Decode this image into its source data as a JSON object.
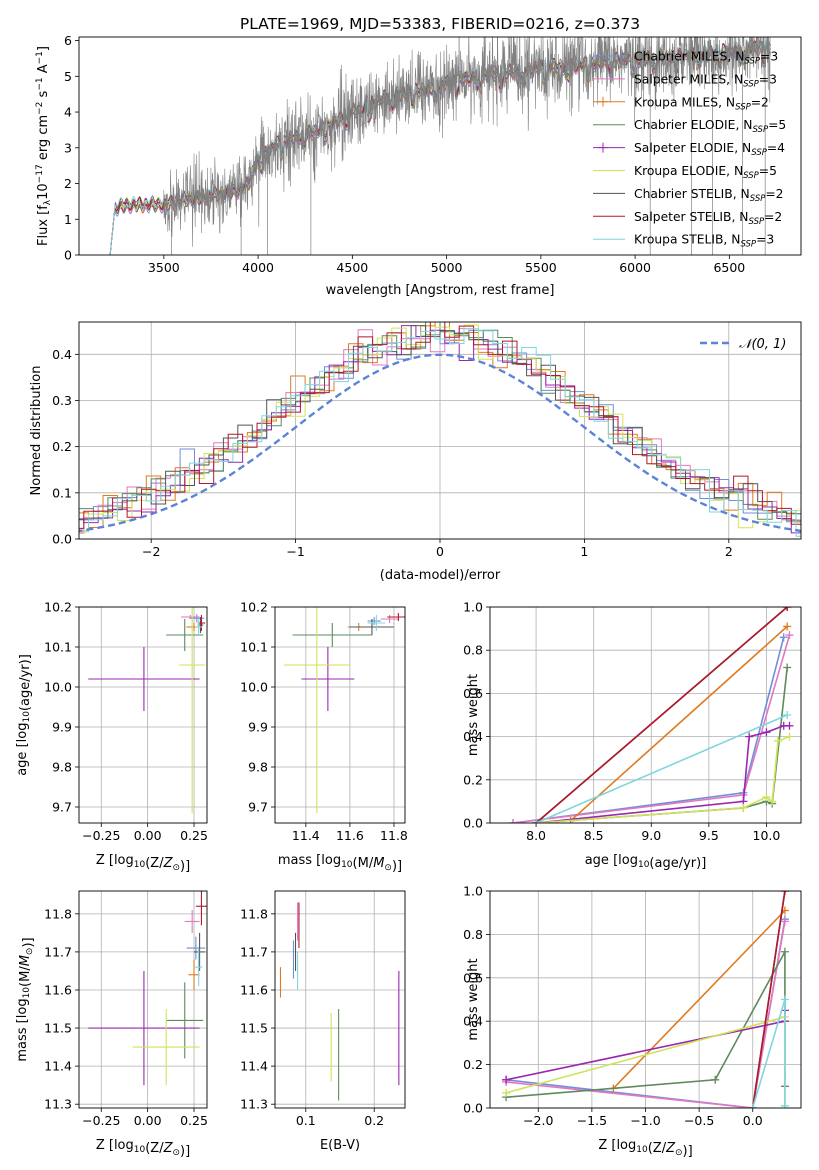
{
  "figure_title": "PLATE=1969, MJD=53383, FIBERID=0216, z=0.373",
  "colors": {
    "Chabrier MILES": "#6f8fd8",
    "Salpeter MILES": "#e377c2",
    "Kroupa MILES": "#e07a1f",
    "Chabrier ELODIE": "#5e8a5e",
    "Salpeter ELODIE": "#9b27b0",
    "Kroupa ELODIE": "#cfe35a",
    "Chabrier STELIB": "#555555",
    "Salpeter STELIB": "#b2182b",
    "Kroupa STELIB": "#7fd6e0",
    "data": "#808080",
    "gaussian": "#5b84d6",
    "grid": "#b0b0b0"
  },
  "chart_data": [
    {
      "id": "spectrum",
      "type": "line",
      "title": "PLATE=1969, MJD=53383, FIBERID=0216, z=0.373",
      "xlabel": "wavelength [Angstrom, rest frame]",
      "ylabel": "Flux [f_λ 10^-17 erg cm^-2 s^-1 A^-1]",
      "xlim": [
        3050,
        6880
      ],
      "ylim": [
        0,
        6.1
      ],
      "xticks": [
        3500,
        4000,
        4500,
        5000,
        5500,
        6000,
        6500
      ],
      "yticks": [
        0,
        1,
        2,
        3,
        4,
        5,
        6
      ],
      "grid": false,
      "legend_position": "top-right",
      "legend": [
        {
          "label": "Chabrier MILES, N",
          "sub": "SSP",
          "tail": "=3"
        },
        {
          "label": "Salpeter MILES, N",
          "sub": "SSP",
          "tail": "=3"
        },
        {
          "label": "Kroupa MILES, N",
          "sub": "SSP",
          "tail": "=2"
        },
        {
          "label": "Chabrier ELODIE, N",
          "sub": "SSP",
          "tail": "=5"
        },
        {
          "label": "Salpeter ELODIE, N",
          "sub": "SSP",
          "tail": "=4"
        },
        {
          "label": "Kroupa ELODIE, N",
          "sub": "SSP",
          "tail": "=5"
        },
        {
          "label": "Chabrier STELIB, N",
          "sub": "SSP",
          "tail": "=2"
        },
        {
          "label": "Salpeter STELIB, N",
          "sub": "SSP",
          "tail": "=2"
        },
        {
          "label": "Kroupa STELIB, N",
          "sub": "SSP",
          "tail": "=3"
        }
      ],
      "continuum": {
        "x": [
          3215,
          3240,
          3300,
          3400,
          3490,
          3500,
          3600,
          3700,
          3800,
          3850,
          3900,
          3950,
          4000,
          4100,
          4200,
          4300,
          4400,
          4500,
          4700,
          4900,
          5100,
          5300,
          5500,
          5700,
          5900,
          6100,
          6300,
          6500,
          6700
        ],
        "y": [
          0,
          1.3,
          1.4,
          1.4,
          1.42,
          1.4,
          1.55,
          1.6,
          1.7,
          1.75,
          1.8,
          2.0,
          2.7,
          3.1,
          3.3,
          3.45,
          3.7,
          4.0,
          4.45,
          4.65,
          4.95,
          5.1,
          5.25,
          5.3,
          5.45,
          5.5,
          5.6,
          5.7,
          5.8
        ]
      },
      "data_spike_lows_x": [
        3540,
        3910,
        4050,
        4280,
        6080,
        6300,
        6410,
        6570,
        6690
      ],
      "data_range_x": [
        3500,
        6720
      ]
    },
    {
      "id": "residuals",
      "type": "step",
      "xlabel": "(data-model)/error",
      "ylabel": "Normed distribution",
      "xlim": [
        -2.5,
        2.5
      ],
      "ylim": [
        0,
        0.47
      ],
      "xticks": [
        -2,
        -1,
        0,
        1,
        2
      ],
      "yticks": [
        0.0,
        0.1,
        0.2,
        0.3,
        0.4
      ],
      "grid": true,
      "bin_width": 0.1,
      "legend_label": "𝒩(0, 1)",
      "legend_position": "top-right"
    },
    {
      "id": "z-age",
      "type": "scatter",
      "xlabel": "Z [log10(Z/Z⊙)]",
      "ylabel": "age  [log10(age/yr)]",
      "xlim": [
        -0.37,
        0.32
      ],
      "ylim": [
        9.66,
        10.2
      ],
      "xticks": [
        -0.25,
        0.0,
        0.25
      ],
      "xticklabels": [
        "−0.25",
        "0.00",
        "0.25"
      ],
      "yticks": [
        9.7,
        9.8,
        9.9,
        10.0,
        10.1,
        10.2
      ],
      "grid": true,
      "points": [
        {
          "model": "Chabrier MILES",
          "x": 0.265,
          "xerr": 0.04,
          "y": 10.172,
          "yerr": 0.01
        },
        {
          "model": "Salpeter MILES",
          "x": 0.23,
          "xerr": 0.05,
          "y": 10.175,
          "yerr": 0.005
        },
        {
          "model": "Kroupa MILES",
          "x": 0.25,
          "xerr": 0.04,
          "y": 10.15,
          "yerr": 0.01
        },
        {
          "model": "Chabrier ELODIE",
          "x": 0.2,
          "xerr": 0.1,
          "y": 10.13,
          "yerr": 0.04
        },
        {
          "model": "Salpeter ELODIE",
          "x": -0.02,
          "xerr": 0.3,
          "y": 10.02,
          "yerr": 0.08
        },
        {
          "model": "Kroupa ELODIE",
          "x": 0.24,
          "xerr": 0.07,
          "y": 10.055,
          "yerr": 0.37
        },
        {
          "model": "Chabrier STELIB",
          "x": 0.285,
          "xerr": 0.015,
          "y": 10.155,
          "yerr": 0.02
        },
        {
          "model": "Salpeter STELIB",
          "x": 0.29,
          "xerr": 0.02,
          "y": 10.16,
          "yerr": 0.02
        },
        {
          "model": "Kroupa STELIB",
          "x": 0.275,
          "xerr": 0.02,
          "y": 10.15,
          "yerr": 0.02
        }
      ]
    },
    {
      "id": "mass-age",
      "type": "scatter",
      "xlabel": "mass [log10(M/M⊙)]",
      "ylabel": "",
      "xlim": [
        11.26,
        11.85
      ],
      "ylim": [
        9.66,
        10.2
      ],
      "xticks": [
        11.4,
        11.6,
        11.8
      ],
      "yticks": [
        9.7,
        9.8,
        9.9,
        10.0,
        10.1,
        10.2
      ],
      "grid": true,
      "points": [
        {
          "model": "Chabrier MILES",
          "x": 11.71,
          "xerr": 0.03,
          "y": 10.165,
          "yerr": 0.01
        },
        {
          "model": "Salpeter MILES",
          "x": 11.78,
          "xerr": 0.04,
          "y": 10.17,
          "yerr": 0.01
        },
        {
          "model": "Kroupa MILES",
          "x": 11.64,
          "xerr": 0.05,
          "y": 10.15,
          "yerr": 0.01
        },
        {
          "model": "Chabrier ELODIE",
          "x": 11.52,
          "xerr": 0.18,
          "y": 10.13,
          "yerr": 0.03
        },
        {
          "model": "Salpeter ELODIE",
          "x": 11.5,
          "xerr": 0.12,
          "y": 10.02,
          "yerr": 0.08
        },
        {
          "model": "Kroupa ELODIE",
          "x": 11.45,
          "xerr": 0.15,
          "y": 10.055,
          "yerr": 0.37
        },
        {
          "model": "Chabrier STELIB",
          "x": 11.7,
          "xerr": 0.1,
          "y": 10.15,
          "yerr": 0.02
        },
        {
          "model": "Salpeter STELIB",
          "x": 11.82,
          "xerr": 0.05,
          "y": 10.175,
          "yerr": 0.01
        },
        {
          "model": "Kroupa STELIB",
          "x": 11.72,
          "xerr": 0.04,
          "y": 10.16,
          "yerr": 0.02
        }
      ]
    },
    {
      "id": "age-weight",
      "type": "line",
      "xlabel": "age  [log10(age/yr)]",
      "ylabel": "mass weight",
      "xlim": [
        7.6,
        10.3
      ],
      "ylim": [
        0,
        1.0
      ],
      "xticks": [
        8.0,
        8.5,
        9.0,
        9.5,
        10.0
      ],
      "yticks": [
        0.0,
        0.2,
        0.4,
        0.6,
        0.8,
        1.0
      ],
      "grid": true,
      "series": [
        {
          "model": "Chabrier MILES",
          "x": [
            7.8,
            9.8,
            10.15
          ],
          "y": [
            0.0,
            0.14,
            0.86
          ]
        },
        {
          "model": "Salpeter MILES",
          "x": [
            7.8,
            9.8,
            10.2
          ],
          "y": [
            0.0,
            0.13,
            0.87
          ]
        },
        {
          "model": "Kroupa MILES",
          "x": [
            8.3,
            10.18
          ],
          "y": [
            0.01,
            0.91
          ]
        },
        {
          "model": "Chabrier ELODIE",
          "x": [
            8.0,
            9.8,
            10.0,
            10.05,
            10.18
          ],
          "y": [
            0.0,
            0.07,
            0.1,
            0.09,
            0.72
          ]
        },
        {
          "model": "Salpeter ELODIE",
          "x": [
            8.0,
            9.8,
            9.85,
            10.0,
            10.15,
            10.2
          ],
          "y": [
            0.0,
            0.1,
            0.4,
            0.42,
            0.45,
            0.45
          ]
        },
        {
          "model": "Kroupa ELODIE",
          "x": [
            8.0,
            9.8,
            10.0,
            10.05,
            10.1,
            10.2
          ],
          "y": [
            0.0,
            0.07,
            0.12,
            0.1,
            0.38,
            0.4
          ]
        },
        {
          "model": "Chabrier STELIB",
          "x": [
            8.0,
            10.18
          ],
          "y": [
            0.0,
            1.0
          ]
        },
        {
          "model": "Salpeter STELIB",
          "x": [
            8.0,
            10.18
          ],
          "y": [
            0.0,
            1.0
          ]
        },
        {
          "model": "Kroupa STELIB",
          "x": [
            8.0,
            10.18
          ],
          "y": [
            0.0,
            0.5
          ]
        }
      ]
    },
    {
      "id": "z-mass",
      "type": "scatter",
      "xlabel": "Z [log10(Z/Z⊙)]",
      "ylabel": "mass [log10(M/M⊙)]",
      "xlim": [
        -0.37,
        0.32
      ],
      "ylim": [
        11.29,
        11.86
      ],
      "xticks": [
        -0.25,
        0.0,
        0.25
      ],
      "xticklabels": [
        "−0.25",
        "0.00",
        "0.25"
      ],
      "yticks": [
        11.3,
        11.4,
        11.5,
        11.6,
        11.7,
        11.8
      ],
      "grid": true,
      "points": [
        {
          "model": "Chabrier MILES",
          "x": 0.26,
          "xerr": 0.05,
          "y": 11.71,
          "yerr": 0.03
        },
        {
          "model": "Salpeter MILES",
          "x": 0.24,
          "xerr": 0.04,
          "y": 11.78,
          "yerr": 0.03
        },
        {
          "model": "Kroupa MILES",
          "x": 0.25,
          "xerr": 0.03,
          "y": 11.64,
          "yerr": 0.04
        },
        {
          "model": "Chabrier ELODIE",
          "x": 0.2,
          "xerr": 0.1,
          "y": 11.52,
          "yerr": 0.1
        },
        {
          "model": "Salpeter ELODIE",
          "x": -0.02,
          "xerr": 0.3,
          "y": 11.5,
          "yerr": 0.15
        },
        {
          "model": "Kroupa ELODIE",
          "x": 0.1,
          "xerr": 0.18,
          "y": 11.45,
          "yerr": 0.1
        },
        {
          "model": "Chabrier STELIB",
          "x": 0.28,
          "xerr": 0.03,
          "y": 11.7,
          "yerr": 0.05
        },
        {
          "model": "Salpeter STELIB",
          "x": 0.29,
          "xerr": 0.03,
          "y": 11.82,
          "yerr": 0.05
        },
        {
          "model": "Kroupa STELIB",
          "x": 0.275,
          "xerr": 0.02,
          "y": 11.66,
          "yerr": 0.05
        }
      ]
    },
    {
      "id": "ebv-mass",
      "type": "scatter",
      "xlabel": "E(B-V)",
      "ylabel": "",
      "xlim": [
        0.055,
        0.245
      ],
      "ylim": [
        11.29,
        11.86
      ],
      "xticks": [
        0.1,
        0.2
      ],
      "yticks": [
        11.3,
        11.4,
        11.5,
        11.6,
        11.7,
        11.8
      ],
      "grid": true,
      "points": [
        {
          "model": "Chabrier MILES",
          "x": 0.082,
          "xerr": 0,
          "y": 11.68,
          "yerr": 0.05
        },
        {
          "model": "Salpeter MILES",
          "x": 0.088,
          "xerr": 0,
          "y": 11.78,
          "yerr": 0.05
        },
        {
          "model": "Kroupa MILES",
          "x": 0.063,
          "xerr": 0,
          "y": 11.62,
          "yerr": 0.04
        },
        {
          "model": "Chabrier ELODIE",
          "x": 0.148,
          "xerr": 0,
          "y": 11.43,
          "yerr": 0.12
        },
        {
          "model": "Salpeter ELODIE",
          "x": 0.236,
          "xerr": 0,
          "y": 11.5,
          "yerr": 0.15
        },
        {
          "model": "Kroupa ELODIE",
          "x": 0.137,
          "xerr": 0,
          "y": 11.45,
          "yerr": 0.09
        },
        {
          "model": "Chabrier STELIB",
          "x": 0.085,
          "xerr": 0,
          "y": 11.7,
          "yerr": 0.05
        },
        {
          "model": "Salpeter STELIB",
          "x": 0.09,
          "xerr": 0,
          "y": 11.77,
          "yerr": 0.06
        },
        {
          "model": "Kroupa STELIB",
          "x": 0.088,
          "xerr": 0,
          "y": 11.65,
          "yerr": 0.05
        }
      ]
    },
    {
      "id": "z-weight",
      "type": "line",
      "xlabel": "Z [log10(Z/Z⊙)]",
      "ylabel": "mass weight",
      "xlim": [
        -2.45,
        0.45
      ],
      "ylim": [
        0,
        1.0
      ],
      "xticks": [
        -2.0,
        -1.5,
        -1.0,
        -0.5,
        0.0
      ],
      "xticklabels": [
        "−2.0",
        "−1.5",
        "−1.0",
        "−0.5",
        "0.0"
      ],
      "yticks": [
        0.0,
        0.2,
        0.4,
        0.6,
        0.8,
        1.0
      ],
      "grid": true,
      "series": [
        {
          "model": "Chabrier MILES",
          "x": [
            -2.3,
            0.0,
            0.3
          ],
          "y": [
            0.13,
            0.0,
            0.87
          ]
        },
        {
          "model": "Salpeter MILES",
          "x": [
            -2.3,
            0.0,
            0.3
          ],
          "y": [
            0.12,
            0.0,
            0.86
          ]
        },
        {
          "model": "Kroupa MILES",
          "x": [
            -1.3,
            0.3
          ],
          "y": [
            0.09,
            0.91
          ]
        },
        {
          "model": "Chabrier ELODIE",
          "x": [
            -2.3,
            -0.35,
            0.3,
            0.3
          ],
          "y": [
            0.05,
            0.13,
            0.72,
            0.1
          ]
        },
        {
          "model": "Salpeter ELODIE",
          "x": [
            -2.3,
            0.3,
            0.3
          ],
          "y": [
            0.13,
            0.4,
            0.45
          ]
        },
        {
          "model": "Kroupa ELODIE",
          "x": [
            -2.3,
            0.3,
            0.3
          ],
          "y": [
            0.07,
            0.42,
            0.0
          ]
        },
        {
          "model": "Chabrier STELIB",
          "x": [
            0.0,
            0.3
          ],
          "y": [
            0.0,
            1.0
          ]
        },
        {
          "model": "Salpeter STELIB",
          "x": [
            0.0,
            0.3
          ],
          "y": [
            0.0,
            1.0
          ]
        },
        {
          "model": "Kroupa STELIB",
          "x": [
            0.0,
            0.3,
            0.3
          ],
          "y": [
            0.0,
            0.5,
            0.01
          ]
        }
      ]
    }
  ]
}
